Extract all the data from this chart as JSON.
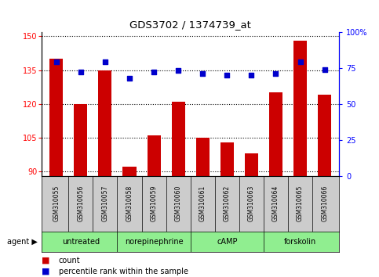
{
  "title": "GDS3702 / 1374739_at",
  "samples": [
    "GSM310055",
    "GSM310056",
    "GSM310057",
    "GSM310058",
    "GSM310059",
    "GSM310060",
    "GSM310061",
    "GSM310062",
    "GSM310063",
    "GSM310064",
    "GSM310065",
    "GSM310066"
  ],
  "counts": [
    140,
    120,
    135,
    92,
    106,
    121,
    105,
    103,
    98,
    125,
    148,
    124
  ],
  "percentile_ranks": [
    79,
    72,
    79,
    68,
    72,
    73,
    71,
    70,
    70,
    71,
    79,
    74
  ],
  "agents": [
    {
      "label": "untreated",
      "start": 0,
      "end": 3
    },
    {
      "label": "norepinephrine",
      "start": 3,
      "end": 6
    },
    {
      "label": "cAMP",
      "start": 6,
      "end": 9
    },
    {
      "label": "forskolin",
      "start": 9,
      "end": 12
    }
  ],
  "ylim_left": [
    88,
    152
  ],
  "ylim_right": [
    0,
    100
  ],
  "yticks_left": [
    90,
    105,
    120,
    135,
    150
  ],
  "yticks_right": [
    0,
    25,
    50,
    75,
    100
  ],
  "bar_color": "#cc0000",
  "dot_color": "#0000cc",
  "bar_bottom": 88,
  "agent_color": "#90ee90",
  "tick_area_color": "#cccccc",
  "legend_count_color": "#cc0000",
  "legend_dot_color": "#0000cc"
}
